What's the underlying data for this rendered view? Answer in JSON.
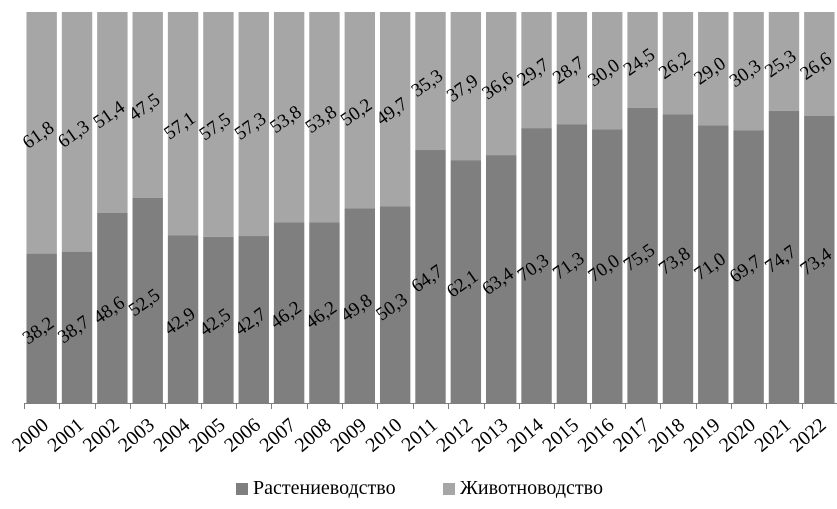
{
  "chart_data": {
    "type": "bar",
    "stacked": true,
    "percent_stacked": true,
    "categories": [
      "2000",
      "2001",
      "2002",
      "2003",
      "2004",
      "2005",
      "2006",
      "2007",
      "2008",
      "2009",
      "2010",
      "2011",
      "2012",
      "2013",
      "2014",
      "2015",
      "2016",
      "2017",
      "2018",
      "2019",
      "2020",
      "2021",
      "2022"
    ],
    "series": [
      {
        "name": "Растениеводство",
        "color": "#7f7f7f",
        "values": [
          38.2,
          38.7,
          48.6,
          52.5,
          42.9,
          42.5,
          42.7,
          46.2,
          46.2,
          49.8,
          50.3,
          64.7,
          62.1,
          63.4,
          70.3,
          71.3,
          70.0,
          75.5,
          73.8,
          71.0,
          69.7,
          74.7,
          73.4
        ],
        "labels": [
          "38,2",
          "38,7",
          "48,6",
          "52,5",
          "42,9",
          "42,5",
          "42,7",
          "46,2",
          "46,2",
          "49,8",
          "50,3",
          "64,7",
          "62,1",
          "63,4",
          "70,3",
          "71,3",
          "70,0",
          "75,5",
          "73,8",
          "71,0",
          "69,7",
          "74,7",
          "73,4"
        ]
      },
      {
        "name": "Животноводство",
        "color": "#a6a6a6",
        "values": [
          61.8,
          61.3,
          51.4,
          47.5,
          57.1,
          57.5,
          57.3,
          53.8,
          53.8,
          50.2,
          49.7,
          35.3,
          37.9,
          36.6,
          29.7,
          28.7,
          30.0,
          24.5,
          26.2,
          29.0,
          30.3,
          25.3,
          26.6
        ],
        "labels": [
          "61,8",
          "61,3",
          "51,4",
          "47,5",
          "57,1",
          "57,5",
          "57,3",
          "53,8",
          "53,8",
          "50,2",
          "49,7",
          "35,3",
          "37,9",
          "36,6",
          "29,7",
          "28,7",
          "30,0",
          "24,5",
          "26,2",
          "29,0",
          "30,3",
          "25,3",
          "26,6"
        ]
      }
    ],
    "ylim": [
      0,
      100
    ],
    "grid": false,
    "legend": "bottom"
  }
}
